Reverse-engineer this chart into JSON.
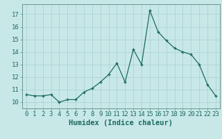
{
  "x": [
    0,
    1,
    2,
    3,
    4,
    5,
    6,
    7,
    8,
    9,
    10,
    11,
    12,
    13,
    14,
    15,
    16,
    17,
    18,
    19,
    20,
    21,
    22,
    23
  ],
  "y": [
    10.6,
    10.5,
    10.5,
    10.6,
    10.0,
    10.2,
    10.2,
    10.8,
    11.1,
    11.6,
    12.2,
    13.1,
    11.6,
    14.2,
    13.0,
    17.3,
    15.6,
    14.9,
    14.3,
    14.0,
    13.8,
    13.0,
    11.4,
    10.5
  ],
  "line_color": "#1a6b5a",
  "bg_color": "#c8e8e8",
  "grid_color_major": "#aacece",
  "grid_color_minor": "#bcdada",
  "xlabel": "Humidex (Indice chaleur)",
  "ylim": [
    9.5,
    17.8
  ],
  "xlim": [
    -0.5,
    23.5
  ],
  "yticks": [
    10,
    11,
    12,
    13,
    14,
    15,
    16,
    17
  ],
  "xticks": [
    0,
    1,
    2,
    3,
    4,
    5,
    6,
    7,
    8,
    9,
    10,
    11,
    12,
    13,
    14,
    15,
    16,
    17,
    18,
    19,
    20,
    21,
    22,
    23
  ],
  "tick_color": "#1a6b5a",
  "xlabel_fontsize": 7.5,
  "tick_fontsize": 6.5,
  "marker_size": 3.5,
  "line_width": 0.9
}
